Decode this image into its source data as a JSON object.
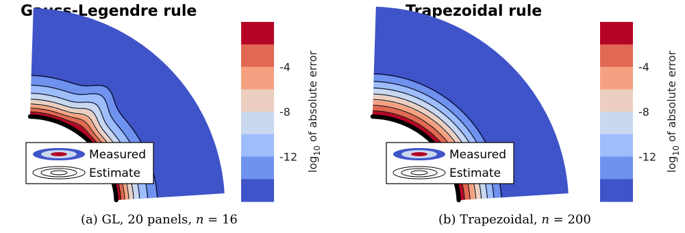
{
  "captions": {
    "a_prefix": "(a) GL, 20 panels, ",
    "a_math": "n",
    "a_suffix": " = 16",
    "b_prefix": "(b) Trapezoidal, ",
    "b_math": "n",
    "b_suffix": " = 200"
  },
  "legend": {
    "measured_label": "Measured",
    "estimate_label": "Estimate"
  },
  "colorbar": {
    "label_main": "log",
    "label_sub": "10",
    "label_rest": " of absolute error",
    "colors": [
      "#b40426",
      "#e16852",
      "#f5a181",
      "#eccfc1",
      "#c9d8ef",
      "#9ebdfc",
      "#6f92ef",
      "#3f54c9"
    ]
  },
  "chart_data": [
    {
      "type": "heatmap",
      "title": "Gauss-Legendre rule",
      "quantity": "log10 of absolute error",
      "color_levels": [
        -2,
        -4,
        -6,
        -8,
        -10,
        -12,
        -14,
        -16
      ],
      "colorbar_ticks": [
        -4,
        -8,
        -12
      ],
      "colorbar_range": [
        -16,
        0
      ],
      "band_fractions": [
        0.04,
        0.035,
        0.035,
        0.045,
        0.055,
        0.075,
        0.09,
        0.625
      ],
      "legend": [
        "Measured",
        "Estimate"
      ]
    },
    {
      "type": "heatmap",
      "title": "Trapezoidal rule",
      "quantity": "log10 of absolute error",
      "color_levels": [
        -2,
        -4,
        -6,
        -8,
        -10,
        -12,
        -14,
        -16
      ],
      "colorbar_ticks": [
        -4,
        -8,
        -12
      ],
      "colorbar_range": [
        -16,
        0
      ],
      "band_fractions": [
        0.05,
        0.05,
        0.05,
        0.05,
        0.055,
        0.06,
        0.07,
        0.615
      ],
      "legend": [
        "Measured",
        "Estimate"
      ]
    }
  ]
}
